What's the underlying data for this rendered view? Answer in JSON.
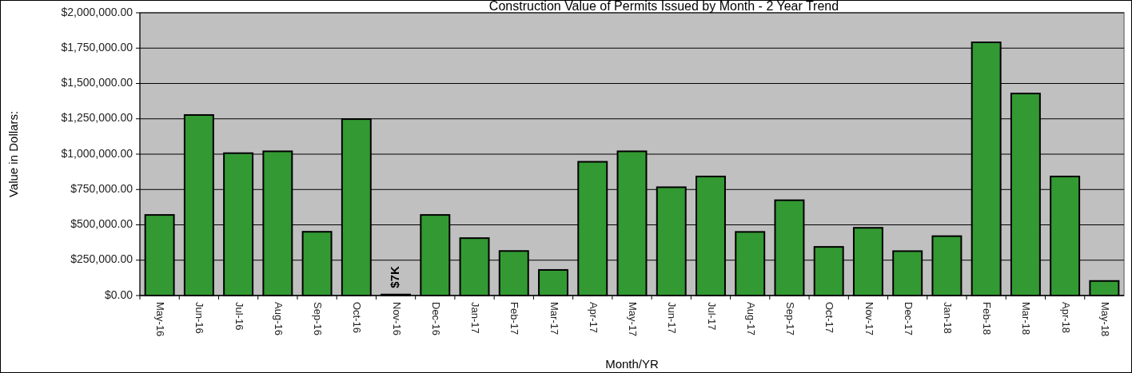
{
  "chart_data": {
    "type": "bar",
    "title": "Construction Value of Permits Issued by Month - 2 Year Trend",
    "xlabel": "Month/YR",
    "ylabel": "Value in Dollars:",
    "categories": [
      "May-16",
      "Jun-16",
      "Jul-16",
      "Aug-16",
      "Sep-16",
      "Oct-16",
      "Nov-16",
      "Dec-16",
      "Jan-17",
      "Feb-17",
      "Mar-17",
      "Apr-17",
      "May-17",
      "Jun-17",
      "Jul-17",
      "Aug-17",
      "Sep-17",
      "Oct-17",
      "Nov-17",
      "Dec-17",
      "Jan-18",
      "Feb-18",
      "Mar-18",
      "Apr-18",
      "May-18"
    ],
    "values": [
      570000,
      1277000,
      1007000,
      1020000,
      451000,
      1248000,
      7000,
      570000,
      406000,
      315000,
      181000,
      946000,
      1020000,
      766000,
      842000,
      450000,
      674000,
      344000,
      479000,
      314000,
      420000,
      1791000,
      1429000,
      842000,
      103000
    ],
    "value_labels": [
      null,
      null,
      null,
      null,
      null,
      null,
      "$7K",
      null,
      null,
      null,
      null,
      null,
      null,
      null,
      null,
      null,
      null,
      null,
      null,
      null,
      null,
      null,
      null,
      null,
      null
    ],
    "color": "#339933",
    "ylim": [
      0,
      2000000
    ],
    "yticks": [
      {
        "value": 0,
        "label": "$0.00"
      },
      {
        "value": 250000,
        "label": "$250,000.00"
      },
      {
        "value": 500000,
        "label": "$500,000.00"
      },
      {
        "value": 750000,
        "label": "$750,000.00"
      },
      {
        "value": 1000000,
        "label": "$1,000,000.00"
      },
      {
        "value": 1250000,
        "label": "$1,250,000.00"
      },
      {
        "value": 1500000,
        "label": "$1,500,000.00"
      },
      {
        "value": 1750000,
        "label": "$1,750,000.00"
      },
      {
        "value": 2000000,
        "label": "$2,000,000.00"
      }
    ],
    "grid": "y"
  }
}
